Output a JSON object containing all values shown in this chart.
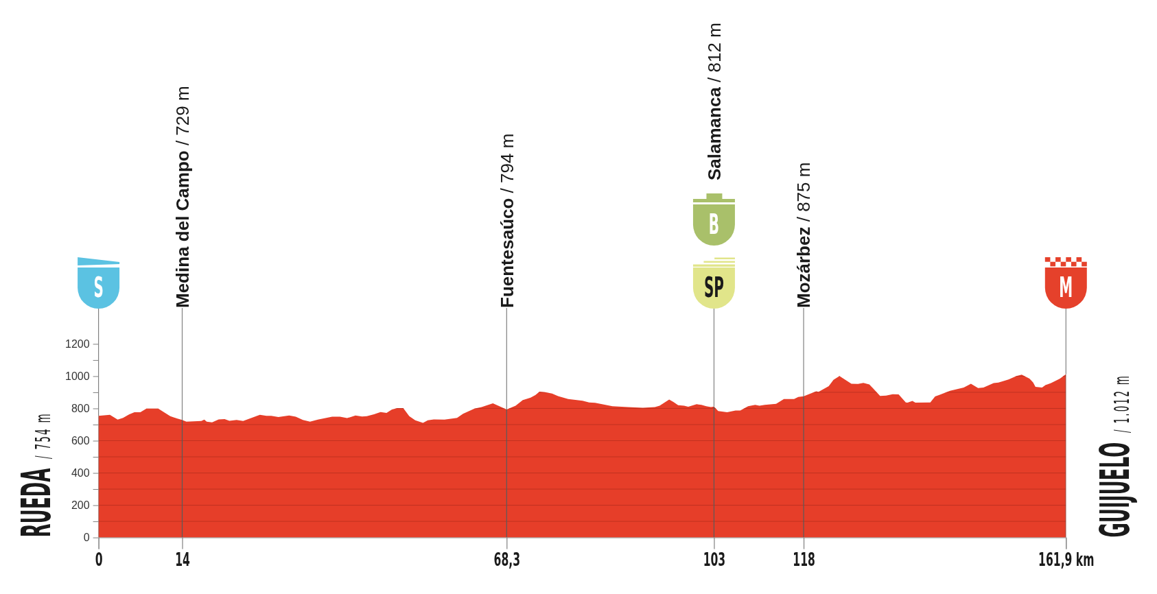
{
  "chart_data": {
    "type": "area",
    "color": "#e63e29",
    "x": [
      0,
      1.9,
      3.2,
      4.1,
      5.1,
      6,
      7,
      8,
      10,
      12,
      13.1,
      14,
      14.7,
      17.2,
      17.7,
      18.1,
      19,
      20.1,
      21.1,
      21.9,
      23.1,
      24.2,
      25.6,
      27,
      28.1,
      28.9,
      30.1,
      31.9,
      33,
      34.2,
      35.4,
      36.7,
      39.1,
      40.4,
      41.6,
      43,
      44.1,
      44.9,
      46.1,
      47.2,
      48.2,
      49.1,
      50,
      51,
      52,
      53,
      54.3,
      55.1,
      56.1,
      57.9,
      60,
      61,
      62.9,
      64.1,
      66,
      68.3,
      69.8,
      71,
      72.3,
      73.1,
      73.8,
      74.7,
      75.9,
      76.9,
      78.6,
      81,
      82.1,
      83.1,
      86,
      88.6,
      91.1,
      93.1,
      93.9,
      95.5,
      96.2,
      97,
      98,
      98.7,
      100.1,
      100.9,
      101.7,
      102.5,
      103,
      103.7,
      105.2,
      106.6,
      107.4,
      108.7,
      109.9,
      110.6,
      111.5,
      113.4,
      114.7,
      116.4,
      117.1,
      118,
      120.1,
      120.5,
      122.2,
      123,
      124,
      126,
      127.1,
      128,
      129,
      130.8,
      131.8,
      132.9,
      133.9,
      135.1,
      135.4,
      136.2,
      136.7,
      139.2,
      140,
      140.8,
      142.5,
      144.8,
      146,
      147.2,
      148.1,
      149.8,
      150.6,
      152.3,
      153.6,
      154.5,
      155.8,
      156.4,
      156.8,
      157.9,
      158.5,
      159.4,
      160.9,
      161.9
    ],
    "values": [
      754,
      760,
      731,
      741,
      763,
      776,
      776,
      799,
      799,
      752,
      738,
      729,
      718,
      722,
      731,
      718,
      714,
      732,
      734,
      723,
      729,
      722,
      741,
      760,
      754,
      754,
      747,
      756,
      749,
      729,
      718,
      731,
      749,
      749,
      740,
      756,
      750,
      752,
      764,
      778,
      772,
      794,
      802,
      802,
      752,
      726,
      711,
      726,
      732,
      731,
      741,
      767,
      799,
      808,
      832,
      794,
      817,
      852,
      867,
      883,
      904,
      901,
      892,
      876,
      858,
      848,
      837,
      835,
      814,
      808,
      804,
      808,
      817,
      855,
      840,
      820,
      817,
      810,
      826,
      822,
      814,
      808,
      812,
      784,
      776,
      787,
      787,
      814,
      822,
      817,
      822,
      829,
      858,
      858,
      871,
      875,
      906,
      903,
      938,
      977,
      1001,
      953,
      952,
      958,
      949,
      877,
      880,
      888,
      887,
      837,
      836,
      847,
      836,
      837,
      874,
      885,
      909,
      930,
      953,
      926,
      930,
      957,
      960,
      979,
      1001,
      1009,
      985,
      961,
      934,
      930,
      945,
      957,
      985,
      1012
    ],
    "xlim": [
      0,
      161.9
    ],
    "xticks": [
      0,
      14,
      {
        "value": 68.3,
        "label": "68,3"
      },
      103,
      118,
      {
        "value": 161.9,
        "label": "161,9 km"
      }
    ],
    "ylim": [
      0,
      1200
    ],
    "yticks": [
      0,
      {
        "value": 100,
        "label": null
      },
      200,
      {
        "value": 300,
        "label": null
      },
      400,
      {
        "value": 500,
        "label": null
      },
      600,
      {
        "value": 700,
        "label": null
      },
      800,
      {
        "value": 900,
        "label": null
      },
      1000,
      {
        "value": 1100,
        "label": null
      },
      1200
    ],
    "grid": true,
    "ylabel": "RUEDA / 754 m",
    "y2label": "GUIJUELO / 1.012 m",
    "annotations": [
      {
        "text": "S",
        "x": 0,
        "y": 754
      },
      {
        "text": "Medina del Campo / 729 m",
        "x": 14,
        "y": 729
      },
      {
        "text": "Fuentesaúco / 794 m",
        "x": 68.3,
        "y": 794
      },
      "Salamanca / 812 m",
      "B",
      {
        "text": "SP",
        "x": 103,
        "y": 812
      },
      {
        "text": "Mozárbez / 875 m",
        "x": 118,
        "y": 875
      },
      {
        "text": "M",
        "x": 161.9,
        "y": 1012
      }
    ]
  }
}
